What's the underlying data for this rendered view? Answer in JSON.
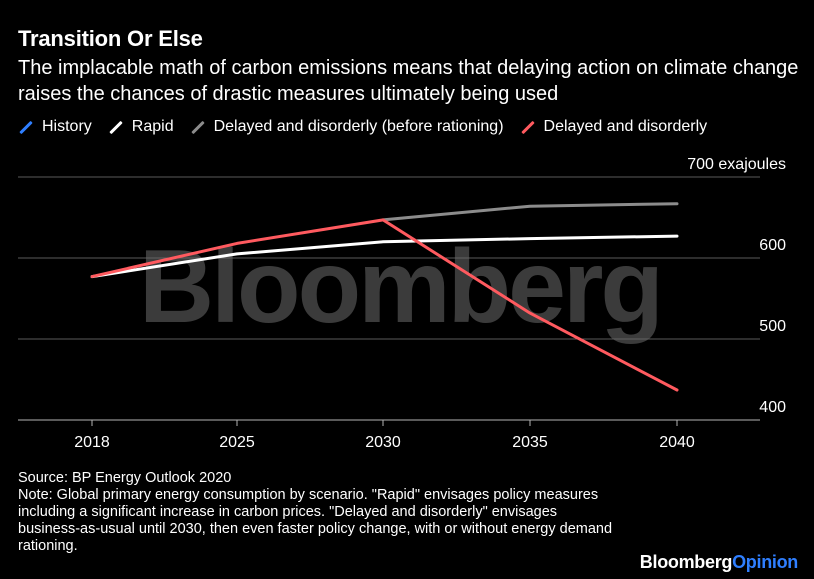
{
  "header": {
    "title": "Transition Or Else",
    "subtitle": "The implacable math of carbon emissions means that delaying action on climate change raises the chances of drastic measures ultimately being used"
  },
  "legend": [
    {
      "name": "History",
      "color": "#2f7fff"
    },
    {
      "name": "Rapid",
      "color": "#ffffff"
    },
    {
      "name": "Delayed and disorderly (before rationing)",
      "color": "#8c8c8c"
    },
    {
      "name": "Delayed and disorderly",
      "color": "#ff5a5f"
    }
  ],
  "watermark": "Bloomberg",
  "chart_data": {
    "type": "line",
    "title": "Transition Or Else",
    "x": [
      2018,
      2025,
      2030,
      2035,
      2040
    ],
    "x_tick_labels": [
      "2018",
      "2025",
      "2030",
      "2035",
      "2040"
    ],
    "y_ticks": [
      400,
      500,
      600,
      700
    ],
    "y_tick_labels": [
      "400",
      "500",
      "600",
      "700 exajoules"
    ],
    "ylim": [
      400,
      700
    ],
    "ylabel": "exajoules",
    "series": [
      {
        "name": "Rapid",
        "color": "#ffffff",
        "x": [
          2018,
          2025,
          2030,
          2035,
          2040
        ],
        "values": [
          577,
          605,
          620,
          624,
          627
        ]
      },
      {
        "name": "Delayed and disorderly (before rationing)",
        "color": "#8c8c8c",
        "x": [
          2030,
          2035,
          2040
        ],
        "values": [
          647,
          664,
          667
        ]
      },
      {
        "name": "Delayed and disorderly",
        "color": "#ff5a5f",
        "x": [
          2018,
          2025,
          2030,
          2035,
          2040
        ],
        "values": [
          577,
          618,
          647,
          532,
          437
        ]
      }
    ]
  },
  "footer": {
    "source": "Source: BP Energy Outlook 2020",
    "note": "Note: Global primary energy consumption by scenario. \"Rapid\" envisages policy measures including a significant increase in carbon prices. \"Delayed and disorderly\" envisages business-as-usual until 2030, then even faster policy change, with or without energy demand rationing."
  },
  "brand": {
    "part1": "Bloomberg",
    "part2": "Opinion"
  }
}
